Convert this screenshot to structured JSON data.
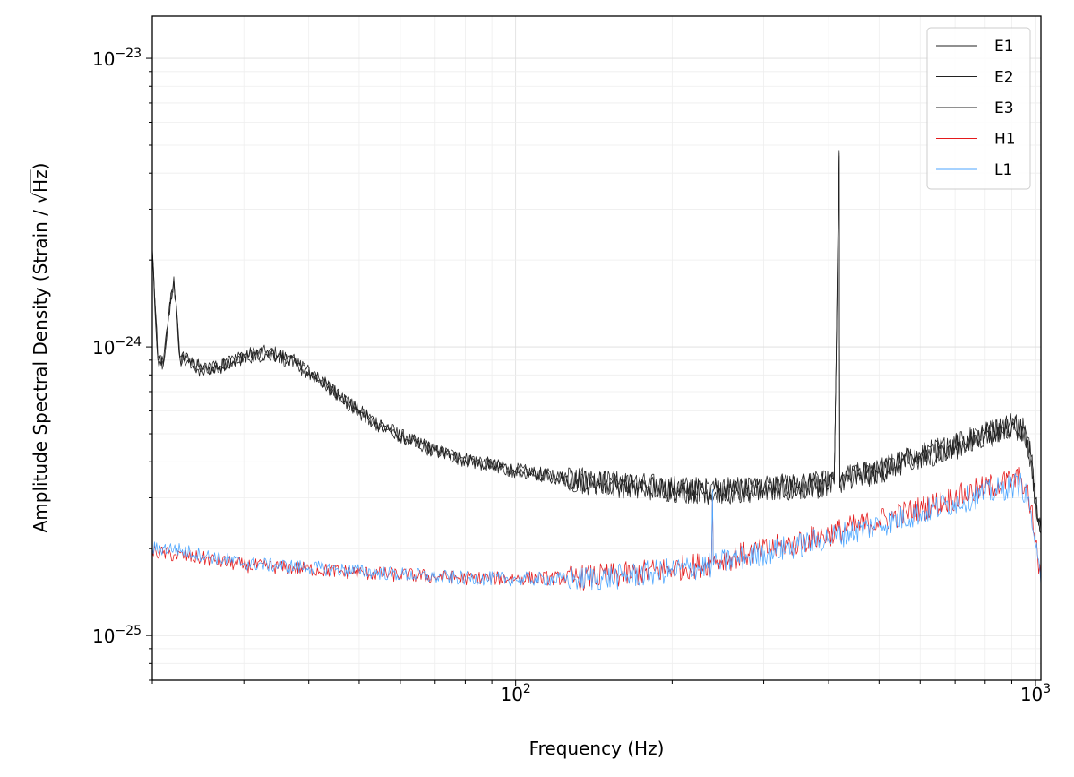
{
  "chart_data": {
    "type": "line",
    "title": "",
    "xlabel": "Frequency (Hz)",
    "ylabel_prefix": "Amplitude Spectral Density (Strain / ",
    "ylabel_radical": "√",
    "ylabel_unit": "Hz",
    "ylabel_suffix": ")",
    "xscale": "log",
    "yscale": "log",
    "xlim": [
      20,
      1024
    ],
    "ylim": [
      7e-26,
      1.4e-23
    ],
    "grid": true,
    "legend_position": "top-right",
    "x_ticks": [
      {
        "value": 100,
        "base": "10",
        "exp": "2"
      },
      {
        "value": 1000,
        "base": "10",
        "exp": "3"
      }
    ],
    "y_ticks": [
      {
        "value": 1e-25,
        "base": "10",
        "exp": "−25"
      },
      {
        "value": 1e-24,
        "base": "10",
        "exp": "−24"
      },
      {
        "value": 1e-23,
        "base": "10",
        "exp": "−23"
      }
    ],
    "series": [
      {
        "name": "E1",
        "color": "#222222",
        "x": [
          20,
          20.5,
          21,
          21.5,
          22,
          22.6,
          23.5,
          25,
          27,
          30,
          33,
          35,
          38,
          42,
          46,
          50,
          56,
          62,
          70,
          80,
          90,
          100,
          120,
          150,
          180,
          200,
          230,
          260,
          300,
          350,
          410,
          419,
          420,
          421,
          430,
          500,
          600,
          700,
          800,
          900,
          950,
          980,
          1000,
          1024
        ],
        "y": [
          2.2e-24,
          9.2e-25,
          8.8e-25,
          1.3e-24,
          1.75e-24,
          9.3e-25,
          9e-25,
          8.4e-25,
          8.6e-25,
          9.4e-25,
          9.6e-25,
          9.5e-25,
          8.8e-25,
          7.7e-25,
          6.8e-25,
          6e-25,
          5.3e-25,
          4.8e-25,
          4.4e-25,
          4.1e-25,
          3.9e-25,
          3.75e-25,
          3.55e-25,
          3.4e-25,
          3.3e-25,
          3.25e-25,
          3.2e-25,
          3.2e-25,
          3.25e-25,
          3.3e-25,
          3.4e-25,
          4.8e-24,
          3.3e-25,
          3.4e-25,
          3.5e-25,
          3.75e-25,
          4.2e-25,
          4.6e-25,
          5e-25,
          5.4e-25,
          5.2e-25,
          4.2e-25,
          3e-25,
          2.3e-25
        ]
      },
      {
        "name": "E2",
        "color": "#222222",
        "x": [
          20,
          20.5,
          21,
          21.5,
          22,
          22.6,
          23.5,
          25,
          27,
          30,
          33,
          35,
          38,
          42,
          46,
          50,
          56,
          62,
          70,
          80,
          90,
          100,
          120,
          150,
          180,
          200,
          230,
          260,
          300,
          350,
          410,
          419,
          420,
          421,
          430,
          500,
          600,
          700,
          800,
          900,
          950,
          980,
          1000,
          1024
        ],
        "y": [
          2.1e-24,
          9e-25,
          8.6e-25,
          1.28e-24,
          1.7e-24,
          9.1e-25,
          8.8e-25,
          8.2e-25,
          8.5e-25,
          9.2e-25,
          9.4e-25,
          9.3e-25,
          8.6e-25,
          7.6e-25,
          6.7e-25,
          5.9e-25,
          5.2e-25,
          4.75e-25,
          4.35e-25,
          4.05e-25,
          3.85e-25,
          3.7e-25,
          3.5e-25,
          3.35e-25,
          3.25e-25,
          3.2e-25,
          3.15e-25,
          3.15e-25,
          3.2e-25,
          3.25e-25,
          3.35e-25,
          4.6e-24,
          3.25e-25,
          3.35e-25,
          3.45e-25,
          3.7e-25,
          4.15e-25,
          4.5e-25,
          4.9e-25,
          5.3e-25,
          5.1e-25,
          4.1e-25,
          2.9e-25,
          2.25e-25
        ]
      },
      {
        "name": "E3",
        "color": "#222222",
        "x": [
          20,
          20.5,
          21,
          21.5,
          22,
          22.6,
          23.5,
          25,
          27,
          30,
          33,
          35,
          38,
          42,
          46,
          50,
          56,
          62,
          70,
          80,
          90,
          100,
          120,
          150,
          180,
          200,
          230,
          260,
          300,
          350,
          410,
          419,
          420,
          421,
          430,
          500,
          600,
          700,
          800,
          900,
          950,
          980,
          1000,
          1024
        ],
        "y": [
          2.15e-24,
          9.1e-25,
          8.7e-25,
          1.29e-24,
          1.72e-24,
          9.2e-25,
          8.9e-25,
          8.3e-25,
          8.55e-25,
          9.3e-25,
          9.5e-25,
          9.4e-25,
          8.7e-25,
          7.65e-25,
          6.75e-25,
          5.95e-25,
          5.25e-25,
          4.78e-25,
          4.38e-25,
          4.08e-25,
          3.88e-25,
          3.72e-25,
          3.52e-25,
          3.38e-25,
          3.28e-25,
          3.22e-25,
          3.18e-25,
          3.18e-25,
          3.22e-25,
          3.28e-25,
          3.38e-25,
          4.7e-24,
          3.28e-25,
          3.38e-25,
          3.48e-25,
          3.72e-25,
          4.18e-25,
          4.55e-25,
          4.95e-25,
          5.35e-25,
          5.15e-25,
          4.15e-25,
          2.95e-25,
          2.28e-25
        ]
      },
      {
        "name": "H1",
        "color": "#e41a1c",
        "x": [
          20,
          22,
          25,
          30,
          40,
          50,
          60,
          70,
          80,
          100,
          130,
          160,
          200,
          238,
          239,
          240,
          245,
          280,
          350,
          400,
          500,
          600,
          700,
          800,
          900,
          940,
          980,
          1000,
          1024
        ],
        "y": [
          1.95e-25,
          1.9e-25,
          1.85e-25,
          1.75e-25,
          1.7e-25,
          1.65e-25,
          1.62e-25,
          1.6e-25,
          1.58e-25,
          1.58e-25,
          1.58e-25,
          1.62e-25,
          1.7e-25,
          1.78e-25,
          3e-25,
          1.8e-25,
          1.82e-25,
          1.92e-25,
          2.1e-25,
          2.25e-25,
          2.5e-25,
          2.75e-25,
          3e-25,
          3.25e-25,
          3.45e-25,
          3.5e-25,
          2.8e-25,
          2.1e-25,
          1.55e-25
        ]
      },
      {
        "name": "L1",
        "color": "#4da6ff",
        "x": [
          20,
          22,
          25,
          30,
          40,
          50,
          60,
          70,
          80,
          100,
          130,
          160,
          200,
          238,
          239,
          240,
          245,
          280,
          350,
          400,
          500,
          600,
          700,
          800,
          900,
          940,
          980,
          1000,
          1024
        ],
        "y": [
          2e-25,
          2e-25,
          1.9e-25,
          1.78e-25,
          1.72e-25,
          1.67e-25,
          1.63e-25,
          1.6e-25,
          1.58e-25,
          1.57e-25,
          1.57e-25,
          1.6e-25,
          1.68e-25,
          1.75e-25,
          3.2e-25,
          1.75e-25,
          1.78e-25,
          1.88e-25,
          2.05e-25,
          2.18e-25,
          2.42e-25,
          2.65e-25,
          2.9e-25,
          3.1e-25,
          3.3e-25,
          3.35e-25,
          2.7e-25,
          2e-25,
          1.5e-25
        ]
      }
    ]
  }
}
